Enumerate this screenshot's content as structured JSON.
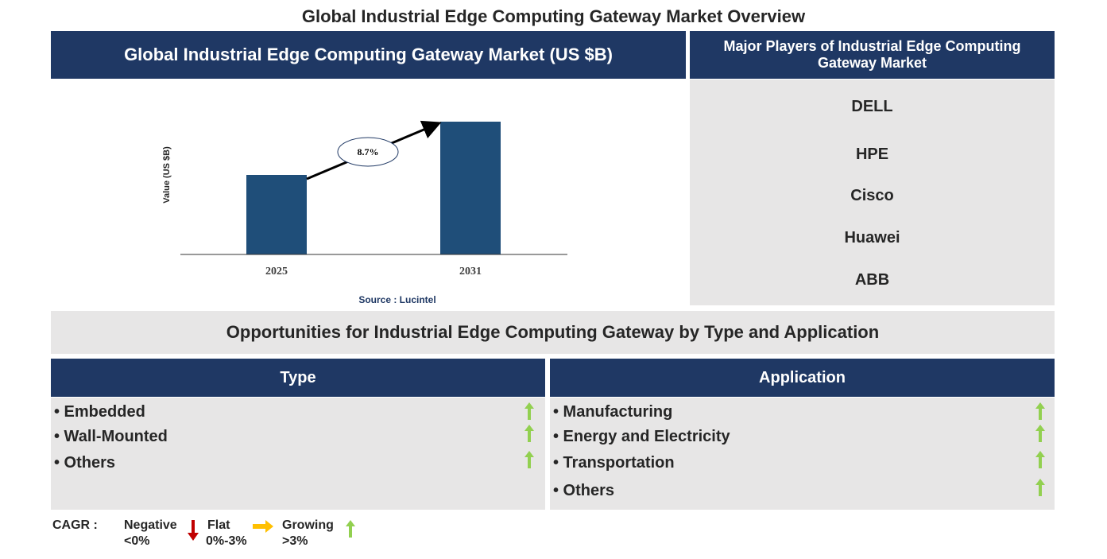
{
  "header": {
    "title": "Global Industrial Edge Computing Gateway Market Overview"
  },
  "market_chart": {
    "title": "Global Industrial Edge Computing Gateway Market (US $B)",
    "y_label": "Value (US $B)",
    "categories": [
      "2025",
      "2031"
    ],
    "cagr_label": "8.7%",
    "source": "Source : Lucintel"
  },
  "players": {
    "title": "Major Players of Industrial Edge Computing Gateway Market",
    "items": [
      "DELL",
      "HPE",
      "Cisco",
      "Huawei",
      "ABB"
    ]
  },
  "opportunities": {
    "title": "Opportunities for Industrial Edge Computing Gateway by Type and Application",
    "type": {
      "title": "Type",
      "items": [
        "• Embedded",
        "• Wall-Mounted",
        "• Others"
      ]
    },
    "application": {
      "title": "Application",
      "items": [
        "• Manufacturing",
        "• Energy and Electricity",
        "• Transportation",
        "• Others"
      ]
    }
  },
  "legend": {
    "label": "CAGR :",
    "negative": "Negative",
    "negative_range": "<0%",
    "flat": "Flat",
    "flat_range": "0%-3%",
    "growing": "Growing",
    "growing_range": ">3%"
  }
}
